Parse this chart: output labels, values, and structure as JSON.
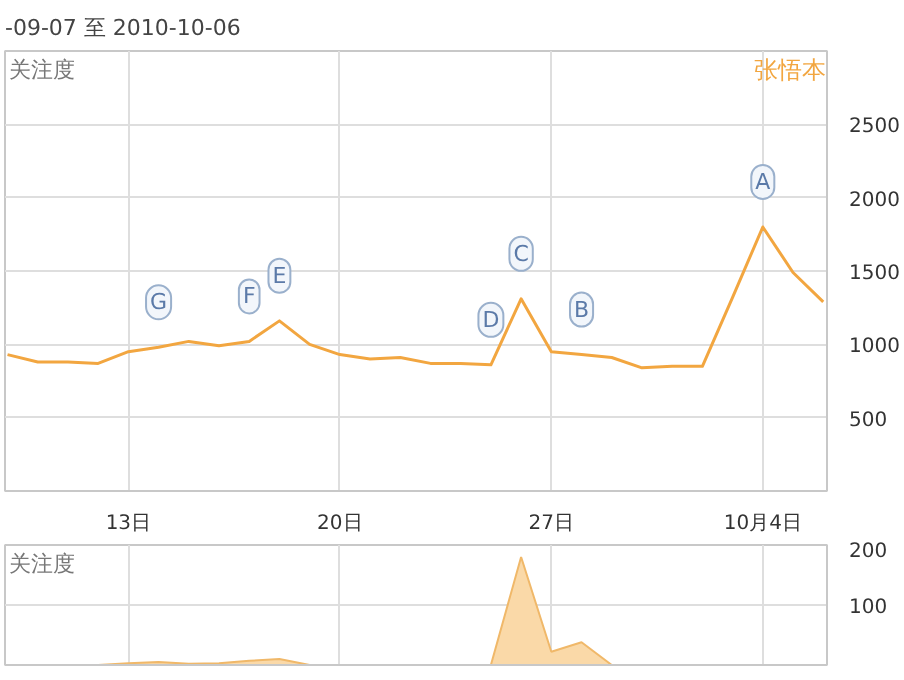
{
  "chart_data": [
    {
      "type": "line",
      "subtitle": "-09-07 至 2010-10-06",
      "x": [
        "2010-09-09",
        "2010-09-10",
        "2010-09-11",
        "2010-09-12",
        "2010-09-13",
        "2010-09-14",
        "2010-09-15",
        "2010-09-16",
        "2010-09-17",
        "2010-09-18",
        "2010-09-19",
        "2010-09-20",
        "2010-09-21",
        "2010-09-22",
        "2010-09-23",
        "2010-09-24",
        "2010-09-25",
        "2010-09-26",
        "2010-09-27",
        "2010-09-28",
        "2010-09-29",
        "2010-09-30",
        "2010-10-01",
        "2010-10-02",
        "2010-10-03",
        "2010-10-04",
        "2010-10-05",
        "2010-10-06"
      ],
      "series": [
        {
          "name": "张悟本",
          "color": "#f2a640",
          "values": [
            930,
            880,
            880,
            870,
            950,
            980,
            1020,
            990,
            1020,
            1160,
            1000,
            930,
            900,
            910,
            870,
            870,
            860,
            1310,
            950,
            930,
            910,
            840,
            850,
            850,
            1320,
            1800,
            1490,
            1290
          ]
        }
      ],
      "xlim": [
        "2010-09-08T22:00",
        "2010-10-06T03:00"
      ],
      "xticks": [
        {
          "value": "2010-09-13",
          "label": "13日"
        },
        {
          "value": "2010-09-20",
          "label": "20日"
        },
        {
          "value": "2010-09-27",
          "label": "27日"
        },
        {
          "value": "2010-10-04",
          "label": "10月4日"
        }
      ],
      "ylim": [
        0,
        3000
      ],
      "yticks": [
        500,
        1000,
        1500,
        2000,
        2500
      ],
      "grid": true,
      "legend": "top right",
      "marker": "none",
      "line_style": "solid",
      "annotations": [
        "关注度",
        {
          "text": "A",
          "x": "2010-10-04",
          "y": 1800
        },
        {
          "text": "B",
          "x": "2010-09-28",
          "y": 930
        },
        {
          "text": "C",
          "x": "2010-09-26",
          "y": 1310
        },
        {
          "text": "D",
          "x": "2010-09-25",
          "y": 860
        },
        {
          "text": "E",
          "x": "2010-09-18",
          "y": 1160
        },
        {
          "text": "F",
          "x": "2010-09-17",
          "y": 1020
        },
        {
          "text": "G",
          "x": "2010-09-14",
          "y": 980
        }
      ]
    },
    {
      "type": "area",
      "annotations": [
        "关注度"
      ],
      "x": [
        "2010-09-09",
        "2010-09-10",
        "2010-09-11",
        "2010-09-12",
        "2010-09-13",
        "2010-09-14",
        "2010-09-15",
        "2010-09-16",
        "2010-09-17",
        "2010-09-18",
        "2010-09-19",
        "2010-09-20",
        "2010-09-21",
        "2010-09-22",
        "2010-09-23",
        "2010-09-24",
        "2010-09-25",
        "2010-09-26",
        "2010-09-27",
        "2010-09-28",
        "2010-09-29",
        "2010-09-30",
        "2010-10-01",
        "2010-10-02",
        "2010-10-03",
        "2010-10-04",
        "2010-10-05",
        "2010-10-06"
      ],
      "series": [
        {
          "color": "#fad9a8",
          "values": [
            0,
            0,
            0,
            0,
            3,
            5,
            2,
            3,
            7,
            10,
            0,
            0,
            0,
            0,
            0,
            0,
            0,
            180,
            22,
            38,
            0,
            0,
            0,
            0,
            0,
            0,
            0,
            0
          ]
        }
      ],
      "xlim": [
        "2010-09-08T22:00",
        "2010-10-06T03:00"
      ],
      "xticks": [
        {
          "value": "2010-09-13",
          "label": null
        },
        {
          "value": "2010-09-20",
          "label": null
        },
        {
          "value": "2010-09-27",
          "label": null
        },
        {
          "value": "2010-10-04",
          "label": null
        }
      ],
      "ylim": [
        0,
        200
      ],
      "yticks": [
        100,
        200
      ],
      "grid": true,
      "tick_labels": "y"
    }
  ]
}
